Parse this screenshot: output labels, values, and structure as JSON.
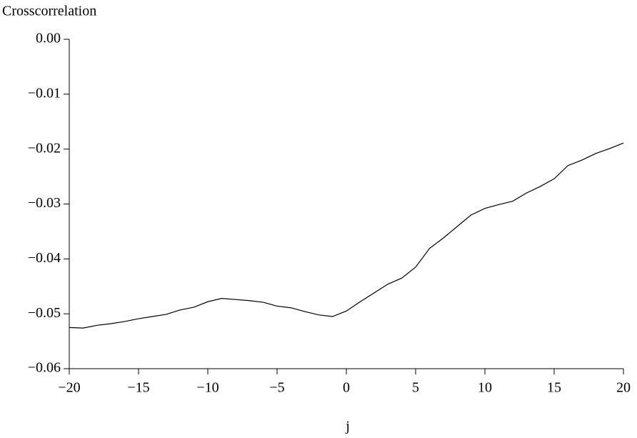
{
  "chart_data": {
    "type": "line",
    "title": "Crosscorrelation",
    "x_label": "j",
    "x": [
      -20,
      -19,
      -18,
      -17,
      -16,
      -15,
      -14,
      -13,
      -12,
      -11,
      -10,
      -9,
      -8,
      -7,
      -6,
      -5,
      -4,
      -3,
      -2,
      -1,
      0,
      1,
      2,
      3,
      4,
      5,
      6,
      7,
      8,
      9,
      10,
      11,
      12,
      13,
      14,
      15,
      16,
      17,
      18,
      19,
      20
    ],
    "series": [
      {
        "name": "Crosscorrelation",
        "color": "#000000",
        "values": [
          -0.0525,
          -0.0526,
          -0.0521,
          -0.0518,
          -0.0514,
          -0.0509,
          -0.0505,
          -0.0501,
          -0.0493,
          -0.0488,
          -0.0478,
          -0.0472,
          -0.0474,
          -0.0476,
          -0.0479,
          -0.0486,
          -0.0489,
          -0.0496,
          -0.0502,
          -0.0505,
          -0.0495,
          -0.0478,
          -0.0462,
          -0.0446,
          -0.0435,
          -0.0415,
          -0.0381,
          -0.0362,
          -0.0341,
          -0.032,
          -0.0308,
          -0.0301,
          -0.0295,
          -0.028,
          -0.0268,
          -0.0254,
          -0.023,
          -0.022,
          -0.0208,
          -0.0199,
          -0.0189
        ]
      }
    ],
    "xlim": [
      -20,
      20
    ],
    "xticks": [
      {
        "value": -20,
        "label": "−20"
      },
      {
        "value": -15,
        "label": "−15"
      },
      {
        "value": -10,
        "label": "−10"
      },
      {
        "value": -5,
        "label": "−5"
      },
      0,
      5,
      10,
      15,
      20
    ],
    "ylim": [
      -0.06,
      0
    ],
    "yticks": [
      {
        "value": -0.06,
        "label": "−0.06"
      },
      {
        "value": -0.05,
        "label": "−0.05"
      },
      {
        "value": -0.04,
        "label": "−0.04"
      },
      {
        "value": -0.03,
        "label": "−0.03"
      },
      {
        "value": -0.02,
        "label": "−0.02"
      },
      {
        "value": -0.01,
        "label": "−0.01"
      },
      {
        "value": 0,
        "label": "0.00"
      }
    ],
    "grid": false
  }
}
